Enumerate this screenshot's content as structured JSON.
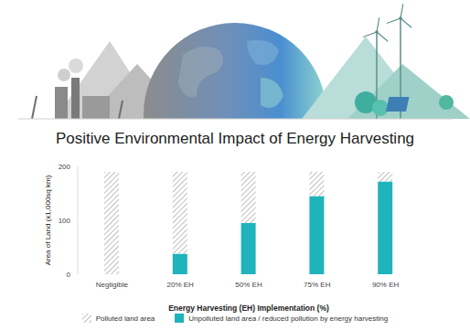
{
  "chart_data": {
    "type": "bar",
    "title": "Positive Environmental Impact of Energy Harvesting",
    "x_label": "Energy Harvesting (EH) Implementation (%)",
    "y_label": "Area of Land (x1,000sq km)",
    "categories": [
      "Negligible",
      "20% EH",
      "50% EH",
      "75% EH",
      "90% EH"
    ],
    "series": [
      {
        "name": "Polluted land area",
        "color": "#a3a3a3",
        "line_style": "hatched",
        "values": [
          190,
          152,
          95,
          45,
          18
        ]
      },
      {
        "name": "Unpolluted land area / reduced pollution by energy harvesting",
        "color": "#1fb3bb",
        "values": [
          0,
          38,
          95,
          145,
          172
        ]
      }
    ],
    "stacked": true,
    "ylim": [
      0,
      200
    ],
    "yticks": [
      0,
      100,
      200
    ],
    "grid": false,
    "legend": "bottom"
  }
}
